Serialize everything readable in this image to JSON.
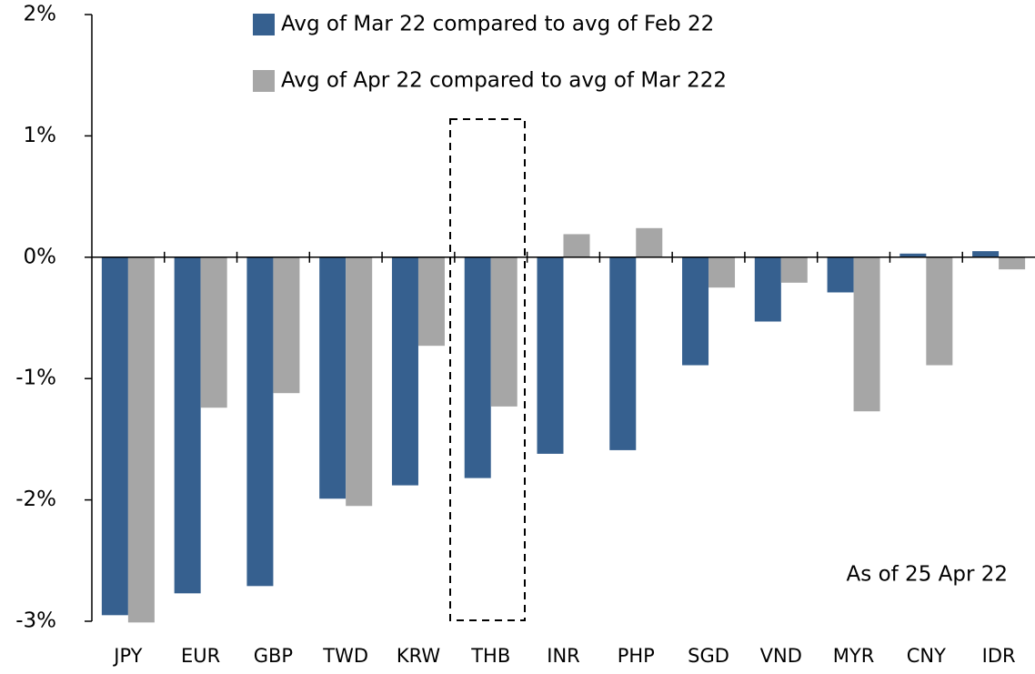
{
  "chart_data": {
    "type": "bar",
    "categories": [
      "JPY",
      "EUR",
      "GBP",
      "TWD",
      "KRW",
      "THB",
      "INR",
      "PHP",
      "SGD",
      "VND",
      "MYR",
      "CNY",
      "IDR"
    ],
    "series": [
      {
        "name": "Avg of Mar 22 compared to avg of Feb 22",
        "color": "#36608f",
        "values": [
          -2.95,
          -2.77,
          -2.71,
          -1.99,
          -1.88,
          -1.82,
          -1.62,
          -1.59,
          -0.89,
          -0.53,
          -0.29,
          0.03,
          0.05
        ]
      },
      {
        "name": "Avg of Apr 22 compared to avg of Mar 222",
        "color": "#a6a6a6",
        "values": [
          -3.01,
          -1.24,
          -1.12,
          -2.05,
          -0.73,
          -1.23,
          0.19,
          0.24,
          -0.25,
          -0.21,
          -1.27,
          -0.89,
          -0.1
        ]
      }
    ],
    "ylim": [
      -3,
      2
    ],
    "yticks": [
      {
        "value": -3,
        "label": "-3%"
      },
      {
        "value": -2,
        "label": "-2%"
      },
      {
        "value": -1,
        "label": "-1%"
      },
      {
        "value": 0,
        "label": "0%"
      },
      {
        "value": 1,
        "label": "1%"
      },
      {
        "value": 2,
        "label": "2%"
      }
    ],
    "annotation": "As of 25 Apr 22"
  }
}
